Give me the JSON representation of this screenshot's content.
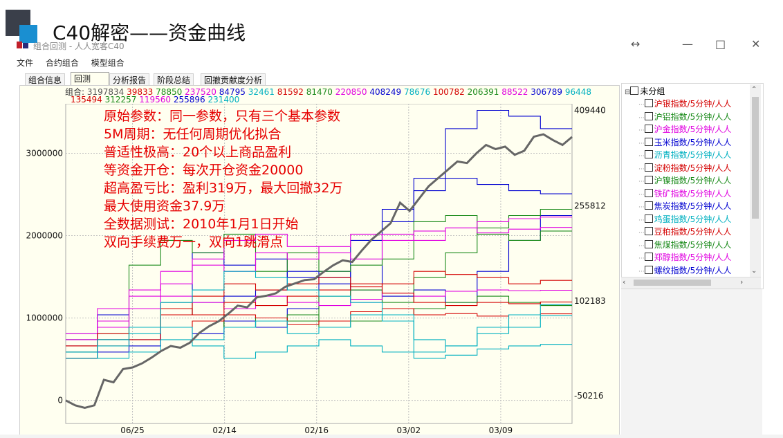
{
  "slide": {
    "title": "C40解密——资金曲线"
  },
  "window": {
    "title": "组合回测 - 人人宽客C40",
    "controls": {
      "resize": "↔",
      "minimize": "—",
      "maximize": "□",
      "close": "✕"
    }
  },
  "menu": {
    "items": [
      "文件",
      "合约组合",
      "模型组合"
    ]
  },
  "tabs": [
    {
      "label": "组合信息",
      "active": false
    },
    {
      "label": "回测",
      "active": true
    },
    {
      "label": "分析报告",
      "active": false
    },
    {
      "label": "阶段总结",
      "active": false
    },
    {
      "label": "回撤贡献度分析",
      "active": false
    }
  ],
  "params_line1": [
    {
      "text": "组合:",
      "color": "#333333"
    },
    {
      "text": "3197834",
      "color": "#555555"
    },
    {
      "text": "39833",
      "color": "#d40000"
    },
    {
      "text": "78850",
      "color": "#1a8a1a"
    },
    {
      "text": "237520",
      "color": "#e000e0"
    },
    {
      "text": "84795",
      "color": "#0000d0"
    },
    {
      "text": "32461",
      "color": "#00b0c0"
    },
    {
      "text": "81592",
      "color": "#d40000"
    },
    {
      "text": "81470",
      "color": "#1a8a1a"
    },
    {
      "text": "220850",
      "color": "#e000e0"
    },
    {
      "text": "408249",
      "color": "#0000d0"
    },
    {
      "text": "78676",
      "color": "#00b0c0"
    },
    {
      "text": "100782",
      "color": "#d40000"
    },
    {
      "text": "206391",
      "color": "#1a8a1a"
    },
    {
      "text": "88522",
      "color": "#e000e0"
    },
    {
      "text": "306789",
      "color": "#0000d0"
    },
    {
      "text": "96448",
      "color": "#00b0c0"
    }
  ],
  "params_line2": [
    {
      "text": "135494",
      "color": "#d40000"
    },
    {
      "text": "312257",
      "color": "#1a8a1a"
    },
    {
      "text": "119560",
      "color": "#e000e0"
    },
    {
      "text": "255896",
      "color": "#0000d0"
    },
    {
      "text": "231400",
      "color": "#00b0c0"
    }
  ],
  "annotations": [
    "原始参数：同一参数，只有三个基本参数",
    "5M周期：无任何周期优化拟合",
    "普适性极高：20个以上商品盈利",
    "等资金开仓：每次开仓资金20000",
    "超高盈亏比：盈利319万，最大回撤32万",
    "最大使用资金37.9万",
    "全数据测试：2010年1月1日开始",
    "双向手续费万一，双向1跳滑点"
  ],
  "chart_data": {
    "type": "line",
    "x_tick_labels": [
      "06/25",
      "02/14",
      "02/16",
      "03/02",
      "03/09"
    ],
    "left_axis": {
      "ticks": [
        0,
        1000000,
        2000000,
        3000000
      ],
      "tick_labels": [
        "0",
        "1000000",
        "2000000",
        "3000000"
      ],
      "ylim": [
        -280000,
        3600000
      ]
    },
    "right_axis": {
      "tick_labels": [
        "409440",
        "255812",
        "102183",
        "-50216"
      ],
      "ylim": [
        -95000,
        420000
      ]
    },
    "grid": true,
    "portfolio_series": {
      "color": "#666666",
      "axis": "left",
      "values": [
        0,
        -60000,
        -90000,
        -60000,
        250000,
        220000,
        380000,
        400000,
        450000,
        520000,
        600000,
        660000,
        640000,
        700000,
        820000,
        900000,
        960000,
        1050000,
        1150000,
        1130000,
        1250000,
        1270000,
        1300000,
        1380000,
        1420000,
        1460000,
        1470000,
        1560000,
        1640000,
        1700000,
        1680000,
        1820000,
        1950000,
        2050000,
        2150000,
        2400000,
        2300000,
        2450000,
        2600000,
        2700000,
        2800000,
        2900000,
        2880000,
        3000000,
        3100000,
        3050000,
        3080000,
        2980000,
        3030000,
        3200000,
        3230000,
        3160000,
        3100000,
        3197834
      ]
    },
    "contract_series": [
      {
        "color": "#0000d0",
        "values": [
          10000,
          40000,
          30000,
          60000,
          50000,
          70000,
          60000,
          90000,
          150000,
          100000,
          250000,
          300000,
          380000,
          409440,
          400000,
          380000
        ]
      },
      {
        "color": "#0000d0",
        "values": [
          50000,
          20000,
          40000,
          80000,
          100000,
          110000,
          120000,
          150000,
          140000,
          200000,
          230000,
          280000,
          300000,
          290000,
          280000,
          275000
        ]
      },
      {
        "color": "#0000d0",
        "values": [
          40000,
          80000,
          90000,
          100000,
          180000,
          160000,
          170000,
          140000,
          130000,
          120000,
          110000,
          120000,
          100000,
          150000,
          200000,
          240000
        ]
      },
      {
        "color": "#1a8a1a",
        "values": [
          30000,
          50000,
          160000,
          200000,
          180000,
          210000,
          150000,
          180000,
          150000,
          160000,
          170000,
          230000,
          240000,
          210000,
          200000,
          215000
        ]
      },
      {
        "color": "#1a8a1a",
        "values": [
          40000,
          60000,
          90000,
          100000,
          80000,
          60000,
          75000,
          70000,
          110000,
          120000,
          100000,
          140000,
          180000,
          220000,
          240000,
          250000
        ]
      },
      {
        "color": "#1a8a1a",
        "values": [
          20000,
          40000,
          60000,
          90000,
          80000,
          60000,
          70000,
          80000,
          60000,
          70000,
          80000,
          90000,
          100000,
          110000,
          100000,
          95000
        ]
      },
      {
        "color": "#e000e0",
        "values": [
          40000,
          70000,
          120000,
          150000,
          170000,
          200000,
          210000,
          190000,
          180000,
          170000,
          210000,
          200000,
          220000,
          230000,
          235000,
          237520
        ]
      },
      {
        "color": "#e000e0",
        "values": [
          50000,
          90000,
          110000,
          130000,
          160000,
          150000,
          180000,
          170000,
          190000,
          210000,
          200000,
          215000,
          220000,
          212000,
          218000,
          220850
        ]
      },
      {
        "color": "#e000e0",
        "values": [
          30000,
          60000,
          90000,
          110000,
          100000,
          90000,
          110000,
          100000,
          95000,
          105000,
          115000,
          110000,
          118000,
          120000,
          119000,
          119560
        ]
      },
      {
        "color": "#d40000",
        "values": [
          20000,
          50000,
          60000,
          80000,
          110000,
          130000,
          120000,
          130000,
          140000,
          125000,
          130000,
          150000,
          145000,
          140000,
          130000,
          135494
        ]
      },
      {
        "color": "#d40000",
        "values": [
          30000,
          40000,
          60000,
          90000,
          80000,
          100000,
          95000,
          110000,
          120000,
          130000,
          115000,
          100000,
          95000,
          100000,
          98000,
          100782
        ]
      },
      {
        "color": "#d40000",
        "values": [
          10000,
          30000,
          40000,
          60000,
          70000,
          80000,
          75000,
          65000,
          70000,
          85000,
          90000,
          80000,
          82000,
          78000,
          80000,
          81592
        ]
      },
      {
        "color": "#00b0c0",
        "values": [
          20000,
          40000,
          60000,
          100000,
          120000,
          150000,
          140000,
          120000,
          110000,
          100000,
          80000,
          40000,
          30000,
          60000,
          80000,
          96448
        ]
      },
      {
        "color": "#00b0c0",
        "values": [
          10000,
          30000,
          50000,
          60000,
          40000,
          60000,
          70000,
          50000,
          60000,
          80000,
          70000,
          20000,
          30000,
          50000,
          60000,
          78676
        ]
      },
      {
        "color": "#00b0c0",
        "values": [
          20000,
          10000,
          20000,
          40000,
          30000,
          10000,
          20000,
          30000,
          40000,
          30000,
          20000,
          10000,
          15000,
          25000,
          30000,
          32461
        ]
      }
    ]
  },
  "tree": {
    "root_label": "未分组",
    "items": [
      {
        "label": "沪银指数/5分钟/人人",
        "color": "#d40000"
      },
      {
        "label": "沪铝指数/5分钟/人人",
        "color": "#1a8a1a"
      },
      {
        "label": "沪金指数/5分钟/人人",
        "color": "#e000e0"
      },
      {
        "label": "玉米指数/5分钟/人人",
        "color": "#0000d0"
      },
      {
        "label": "沥青指数/5分钟/人人",
        "color": "#00b0c0"
      },
      {
        "label": "淀粉指数/5分钟/人人",
        "color": "#d40000"
      },
      {
        "label": "沪镍指数/5分钟/人人",
        "color": "#1a8a1a"
      },
      {
        "label": "铁矿指数/5分钟/人人",
        "color": "#e000e0"
      },
      {
        "label": "焦炭指数/5分钟/人人",
        "color": "#0000d0"
      },
      {
        "label": "鸡蛋指数/5分钟/人人",
        "color": "#00b0c0"
      },
      {
        "label": "豆粕指数/5分钟/人人",
        "color": "#d40000"
      },
      {
        "label": "焦煤指数/5分钟/人人",
        "color": "#1a8a1a"
      },
      {
        "label": "郑醇指数/5分钟/人人",
        "color": "#e000e0"
      },
      {
        "label": "螺纹指数/5分钟/人人",
        "color": "#0000d0"
      }
    ]
  }
}
